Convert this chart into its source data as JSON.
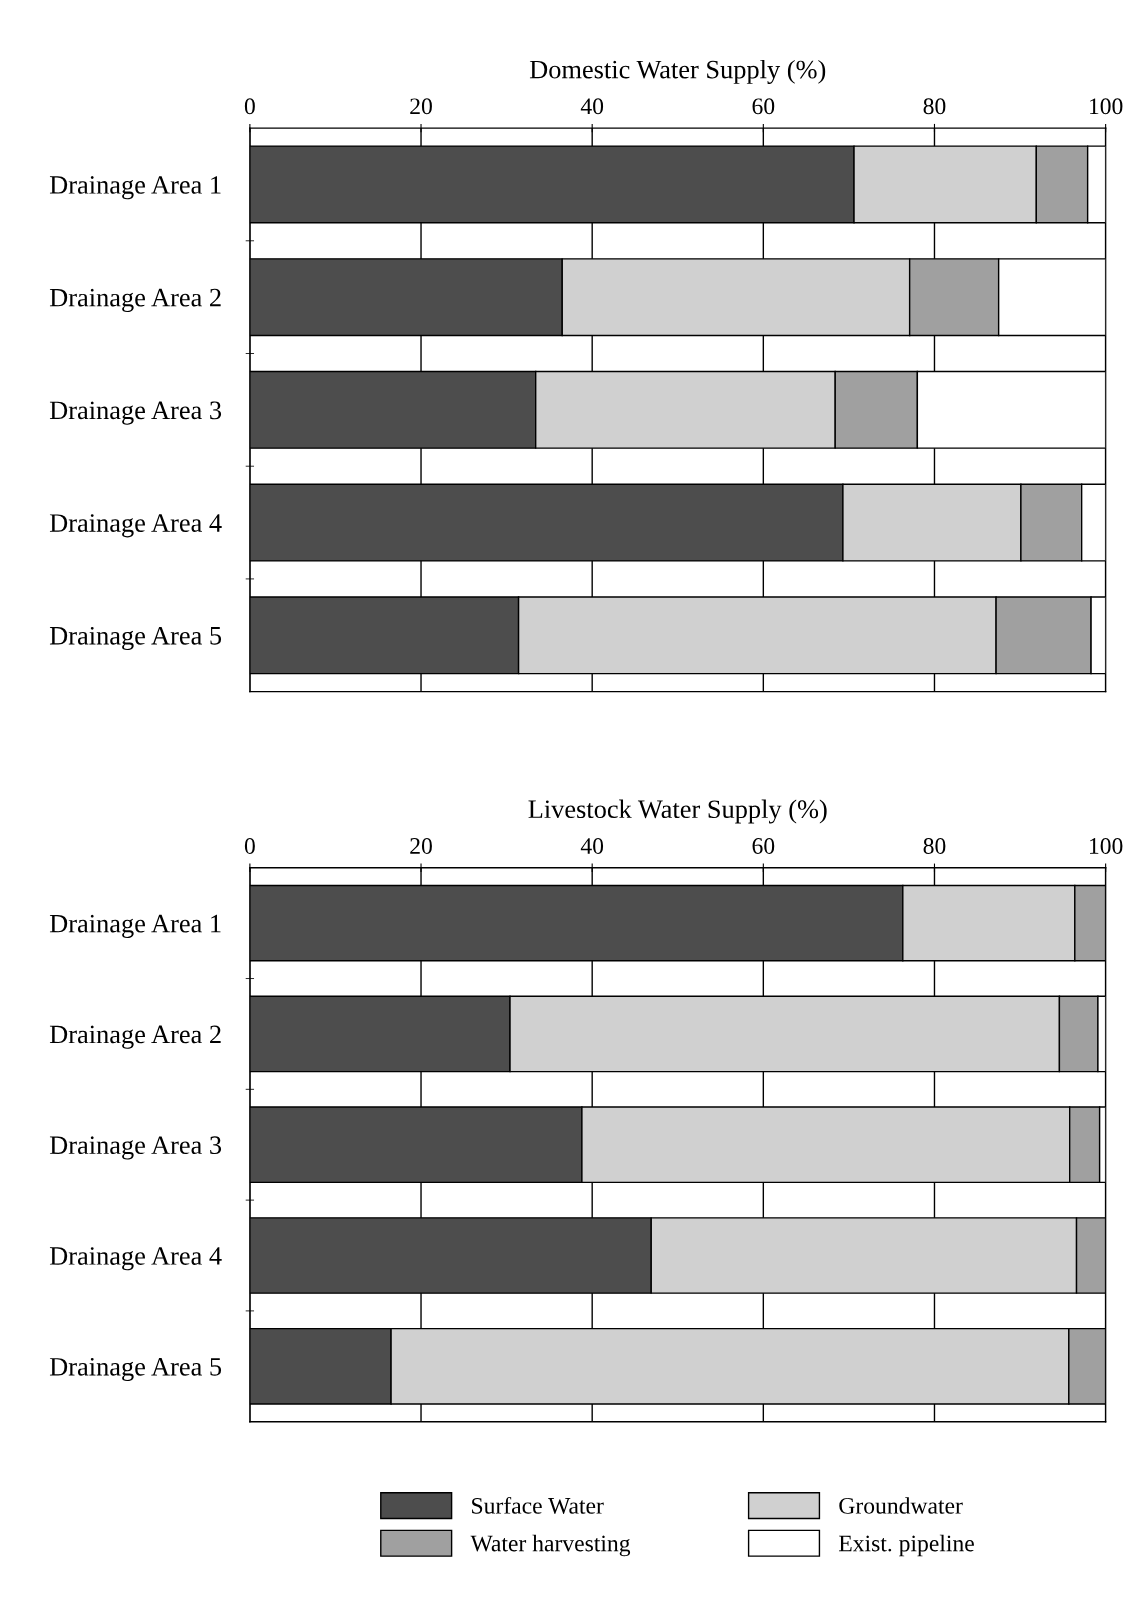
{
  "chart_data": [
    {
      "type": "bar",
      "orientation": "horizontal",
      "stacked": true,
      "xlabel": "Domestic Water Supply (%)",
      "categories": [
        "Drainage Area 1",
        "Drainage Area 2",
        "Drainage Area 3",
        "Drainage Area 4",
        "Drainage Area 5"
      ],
      "series": [
        {
          "color": "#4d4d4d",
          "values": [
            70.6,
            36.5,
            33.4,
            69.3,
            31.4
          ]
        },
        {
          "color": "#d0d0d0",
          "values": [
            21.3,
            40.6,
            35.0,
            20.8,
            55.8
          ]
        },
        {
          "color": "#a0a0a0",
          "values": [
            6.0,
            10.4,
            9.6,
            7.1,
            11.1
          ]
        },
        {
          "color": "#ffffff",
          "values": [
            2.1,
            12.5,
            22.0,
            2.8,
            1.7
          ]
        }
      ],
      "xlim": [
        0,
        100
      ],
      "xticks": [
        0,
        20,
        40,
        60,
        80,
        100
      ],
      "grid": "x"
    },
    {
      "type": "bar",
      "orientation": "horizontal",
      "stacked": true,
      "xlabel": "Livestock Water Supply (%)",
      "categories": [
        "Drainage Area 1",
        "Drainage Area 2",
        "Drainage Area 3",
        "Drainage Area 4",
        "Drainage Area 5"
      ],
      "series": [
        {
          "name": "Surface Water",
          "color": "#4d4d4d",
          "values": [
            76.3,
            30.4,
            38.8,
            46.9,
            16.5
          ]
        },
        {
          "name": "Groundwater",
          "color": "#d0d0d0",
          "values": [
            20.1,
            64.2,
            57.0,
            49.7,
            79.2
          ]
        },
        {
          "name": "Water harvesting",
          "color": "#a0a0a0",
          "values": [
            3.6,
            4.5,
            3.5,
            3.4,
            4.3
          ]
        },
        {
          "name": "Exist. pipeline",
          "color": "#ffffff",
          "values": [
            0,
            0.9,
            0.7,
            0,
            0
          ]
        }
      ],
      "xlim": [
        0,
        100
      ],
      "xticks": [
        0,
        20,
        40,
        60,
        80,
        100
      ],
      "grid": "x",
      "legend": "bottom"
    }
  ]
}
